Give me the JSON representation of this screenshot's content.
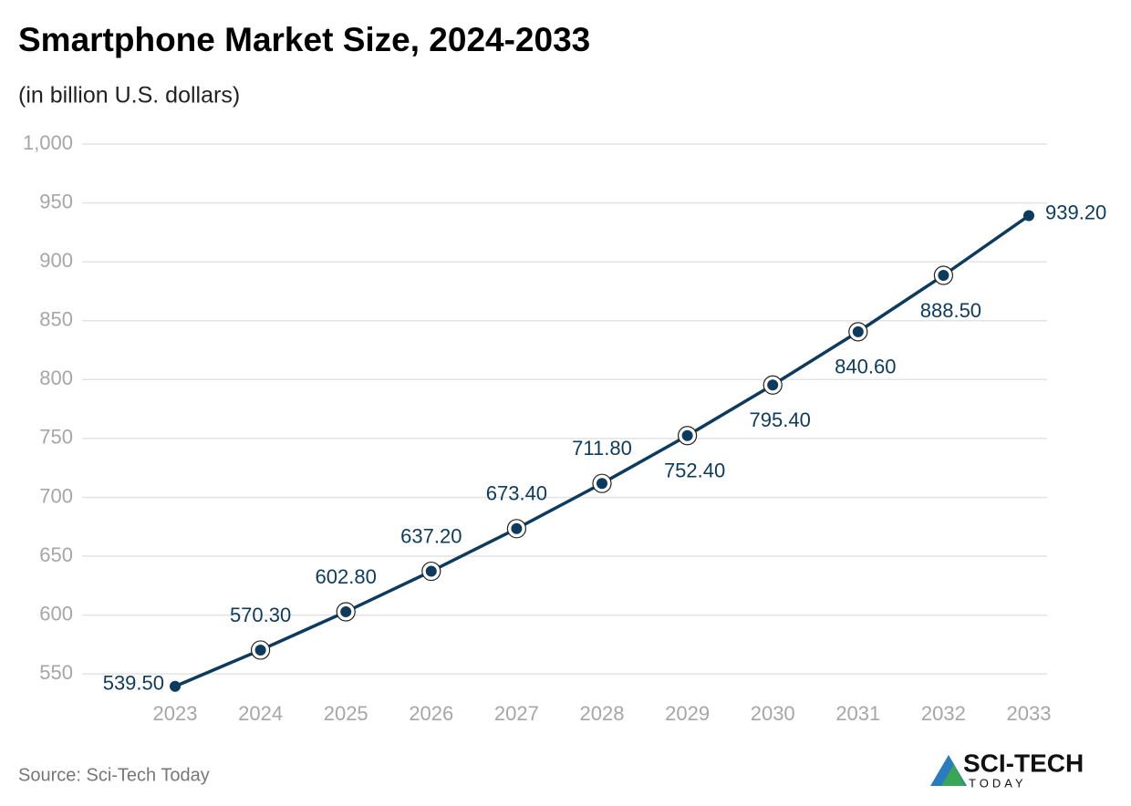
{
  "chart_data": {
    "type": "line",
    "title": "Smartphone Market Size, 2024-2033",
    "subtitle": "(in billion U.S. dollars)",
    "categories": [
      "2023",
      "2024",
      "2025",
      "2026",
      "2027",
      "2028",
      "2029",
      "2030",
      "2031",
      "2032",
      "2033"
    ],
    "values": [
      539.5,
      570.3,
      602.8,
      637.2,
      673.4,
      711.8,
      752.4,
      795.4,
      840.6,
      888.5,
      939.2
    ],
    "value_labels": [
      "539.50",
      "570.30",
      "602.80",
      "637.20",
      "673.40",
      "711.80",
      "752.40",
      "795.40",
      "840.60",
      "888.50",
      "939.20"
    ],
    "color": "#0d3b5e",
    "ylim": [
      530,
      1000
    ],
    "yticks": [
      550,
      600,
      650,
      700,
      750,
      800,
      850,
      900,
      950,
      {
        "value": 1000,
        "label": "1,000"
      }
    ],
    "grid": true,
    "source": "Source: Sci-Tech Today",
    "logo": {
      "name": "SCI-TECH",
      "tagline": "TODAY"
    }
  }
}
